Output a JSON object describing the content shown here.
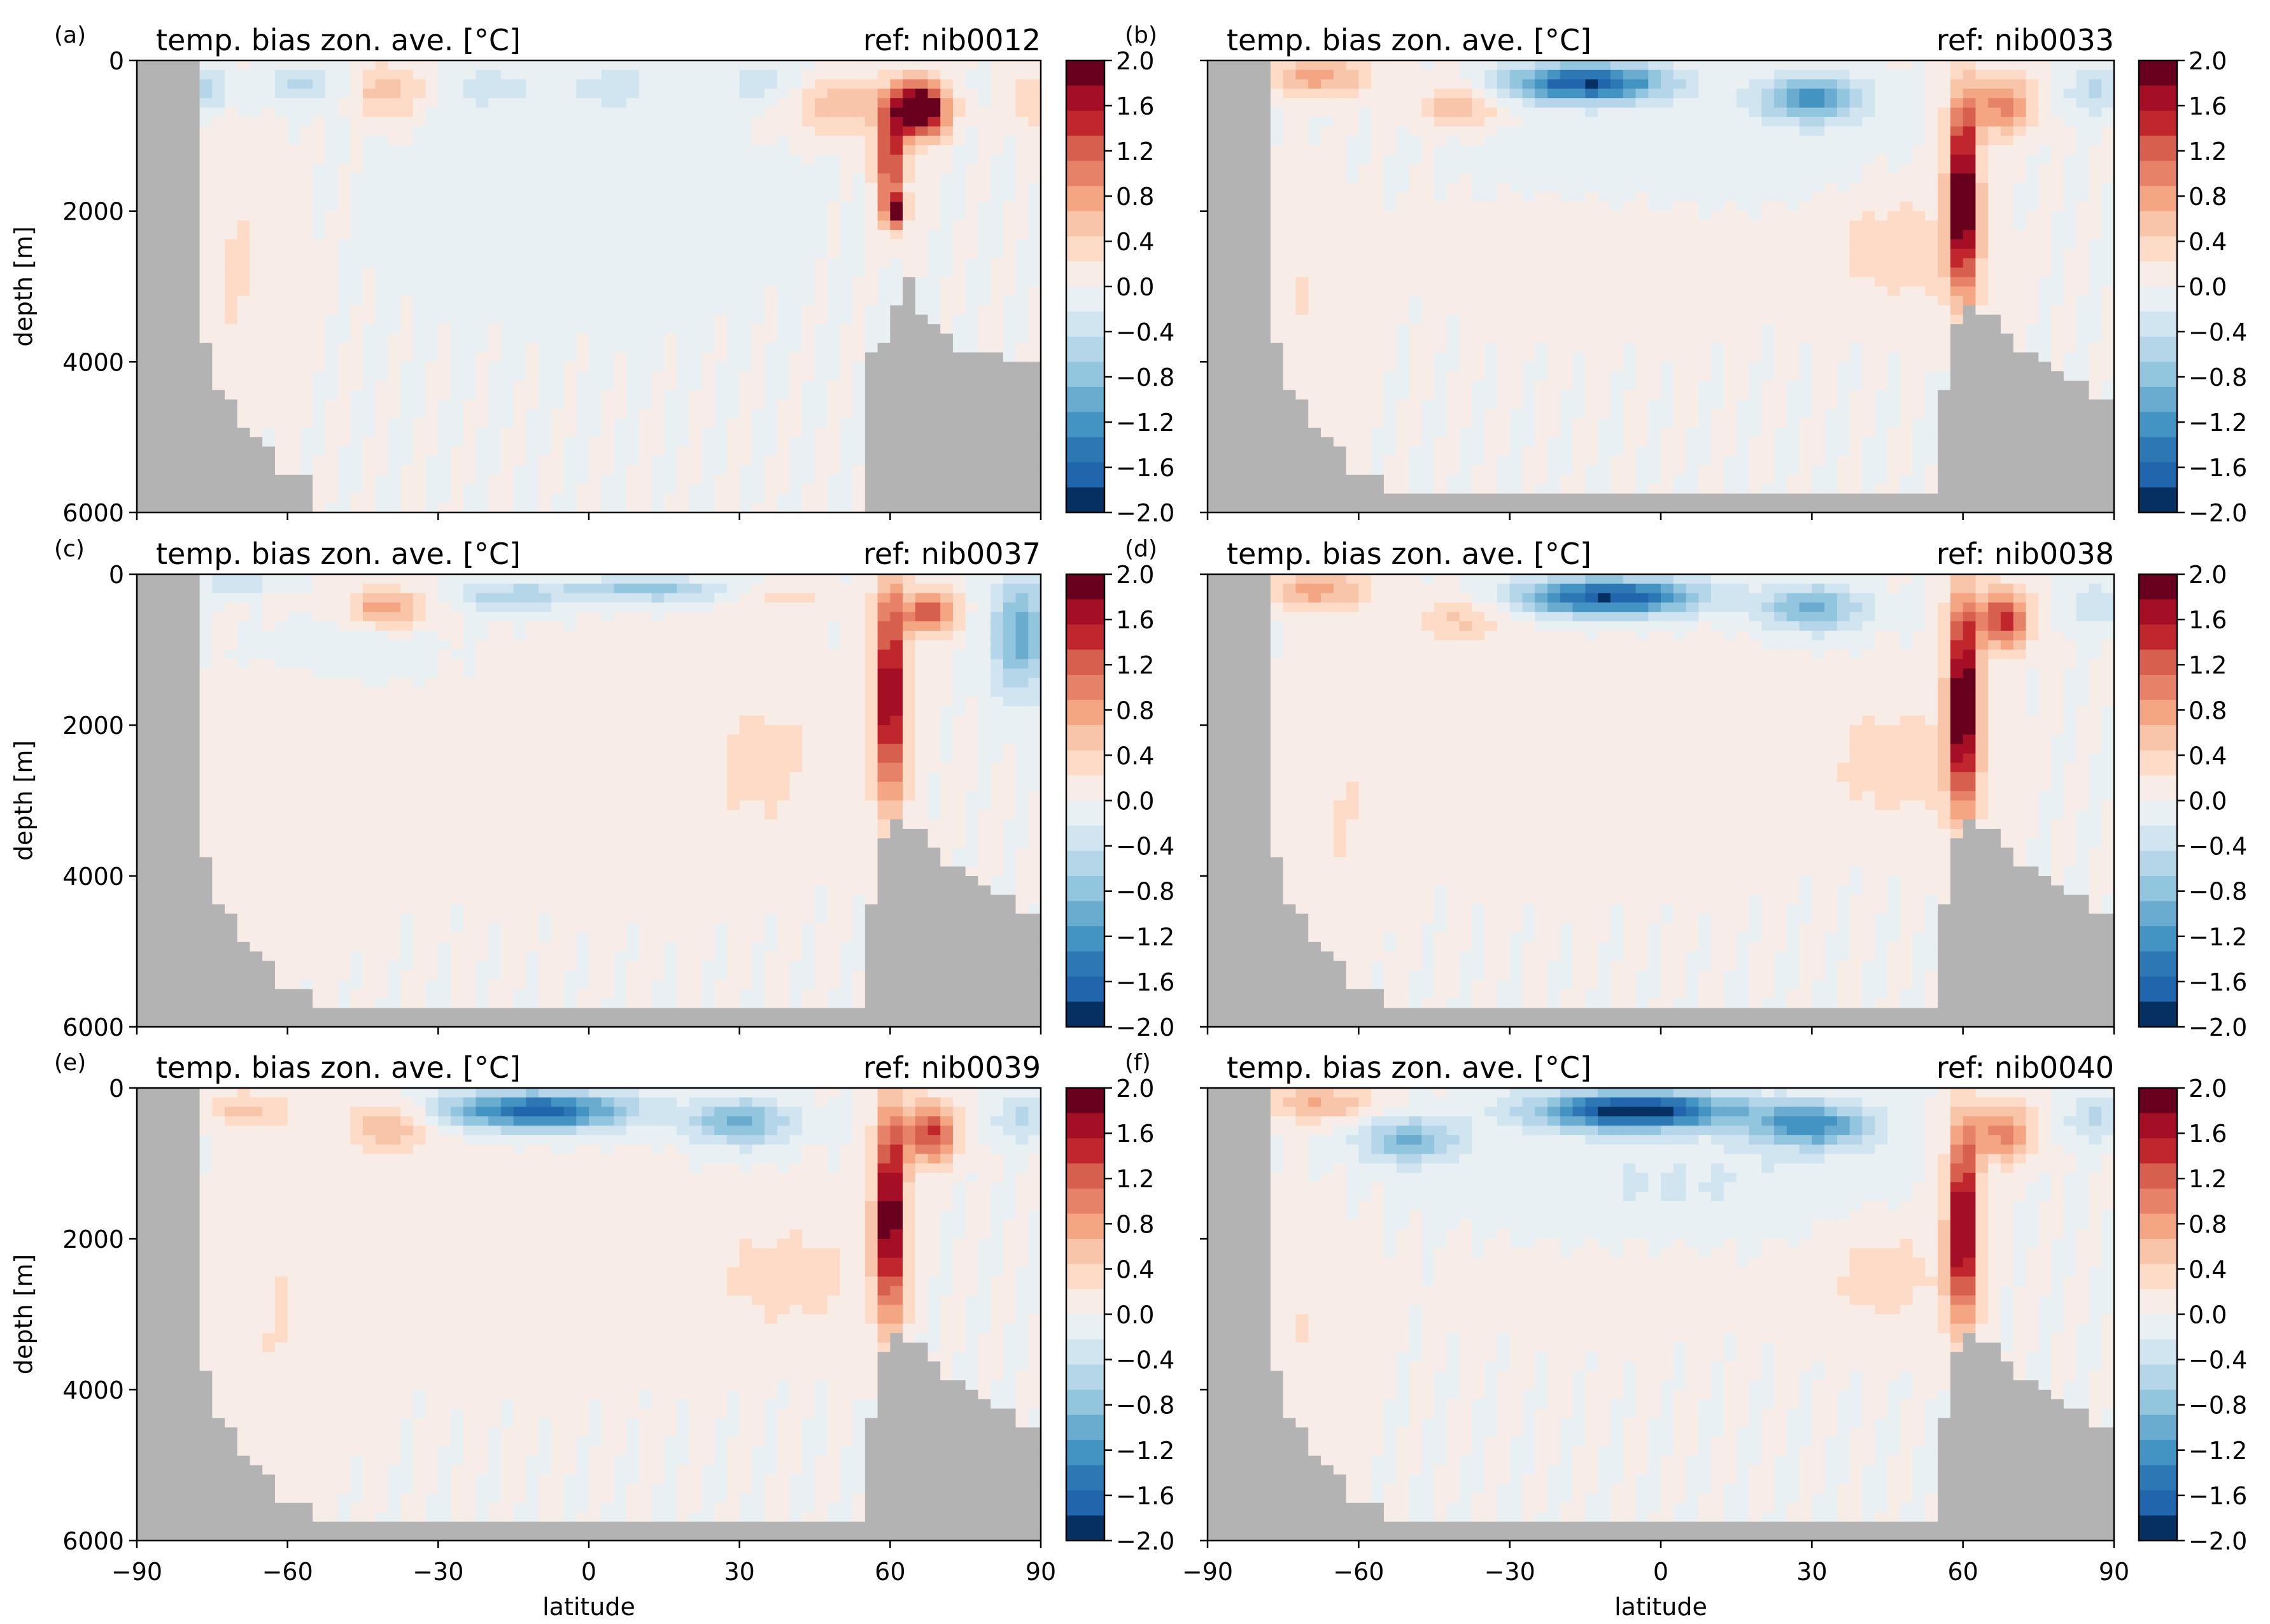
{
  "figure": {
    "colorbar_ticks": [
      "2.0",
      "1.6",
      "1.2",
      "0.8",
      "0.4",
      "0.0",
      "−0.4",
      "−0.8",
      "−1.2",
      "−1.6",
      "−2.0"
    ],
    "colorbar_colors": [
      "#67001f",
      "#a50f26",
      "#c0272d",
      "#d6604d",
      "#e58267",
      "#f4a582",
      "#f8c5a8",
      "#fddbc7",
      "#f7ece6",
      "#e8f0f4",
      "#d1e5f0",
      "#b5d6e8",
      "#92c5de",
      "#6aacd0",
      "#4393c3",
      "#2c77b4",
      "#2166ac",
      "#053061"
    ],
    "land_color": "#b3b3b3"
  },
  "chart_data": [
    {
      "type": "heatmap",
      "panel_label": "(a)",
      "title": "temp. bias zon. ave. [°C]",
      "ref": "ref: nib0012",
      "ylabel": "depth [m]",
      "xlabel": "",
      "y_ticks": [
        "0",
        "2000",
        "4000",
        "6000"
      ],
      "x_ticks": [
        "",
        "",
        "",
        "",
        "",
        "",
        ""
      ],
      "xlim": [
        -90,
        90
      ],
      "ylim": [
        6000,
        0
      ],
      "vmin": -2.0,
      "vmax": 2.0,
      "colormap": "RdBu_r, 20 levels"
    },
    {
      "type": "heatmap",
      "panel_label": "(b)",
      "title": "temp. bias zon. ave. [°C]",
      "ref": "ref: nib0033",
      "ylabel": "",
      "xlabel": "",
      "y_ticks": [
        "",
        "",
        "",
        ""
      ],
      "x_ticks": [
        "",
        "",
        "",
        "",
        "",
        "",
        ""
      ],
      "xlim": [
        -90,
        90
      ],
      "ylim": [
        6000,
        0
      ],
      "vmin": -2.0,
      "vmax": 2.0,
      "colormap": "RdBu_r, 20 levels"
    },
    {
      "type": "heatmap",
      "panel_label": "(c)",
      "title": "temp. bias zon. ave. [°C]",
      "ref": "ref: nib0037",
      "ylabel": "depth [m]",
      "xlabel": "",
      "y_ticks": [
        "0",
        "2000",
        "4000",
        "6000"
      ],
      "x_ticks": [
        "",
        "",
        "",
        "",
        "",
        "",
        ""
      ],
      "xlim": [
        -90,
        90
      ],
      "ylim": [
        6000,
        0
      ],
      "vmin": -2.0,
      "vmax": 2.0,
      "colormap": "RdBu_r, 20 levels"
    },
    {
      "type": "heatmap",
      "panel_label": "(d)",
      "title": "temp. bias zon. ave. [°C]",
      "ref": "ref: nib0038",
      "ylabel": "",
      "xlabel": "",
      "y_ticks": [
        "",
        "",
        "",
        ""
      ],
      "x_ticks": [
        "",
        "",
        "",
        "",
        "",
        "",
        ""
      ],
      "xlim": [
        -90,
        90
      ],
      "ylim": [
        6000,
        0
      ],
      "vmin": -2.0,
      "vmax": 2.0,
      "colormap": "RdBu_r, 20 levels"
    },
    {
      "type": "heatmap",
      "panel_label": "(e)",
      "title": "temp. bias zon. ave. [°C]",
      "ref": "ref: nib0039",
      "ylabel": "depth [m]",
      "xlabel": "latitude",
      "y_ticks": [
        "0",
        "2000",
        "4000",
        "6000"
      ],
      "x_ticks": [
        "−90",
        "−60",
        "−30",
        "0",
        "30",
        "60",
        "90"
      ],
      "xlim": [
        -90,
        90
      ],
      "ylim": [
        6000,
        0
      ],
      "vmin": -2.0,
      "vmax": 2.0,
      "colormap": "RdBu_r, 20 levels"
    },
    {
      "type": "heatmap",
      "panel_label": "(f)",
      "title": "temp. bias zon. ave. [°C]",
      "ref": "ref: nib0040",
      "ylabel": "",
      "xlabel": "latitude",
      "y_ticks": [
        "",
        "",
        "",
        ""
      ],
      "x_ticks": [
        "−90",
        "−60",
        "−30",
        "0",
        "30",
        "60",
        "90"
      ],
      "xlim": [
        -90,
        90
      ],
      "ylim": [
        6000,
        0
      ],
      "vmin": -2.0,
      "vmax": 2.0,
      "colormap": "RdBu_r, 20 levels"
    }
  ]
}
